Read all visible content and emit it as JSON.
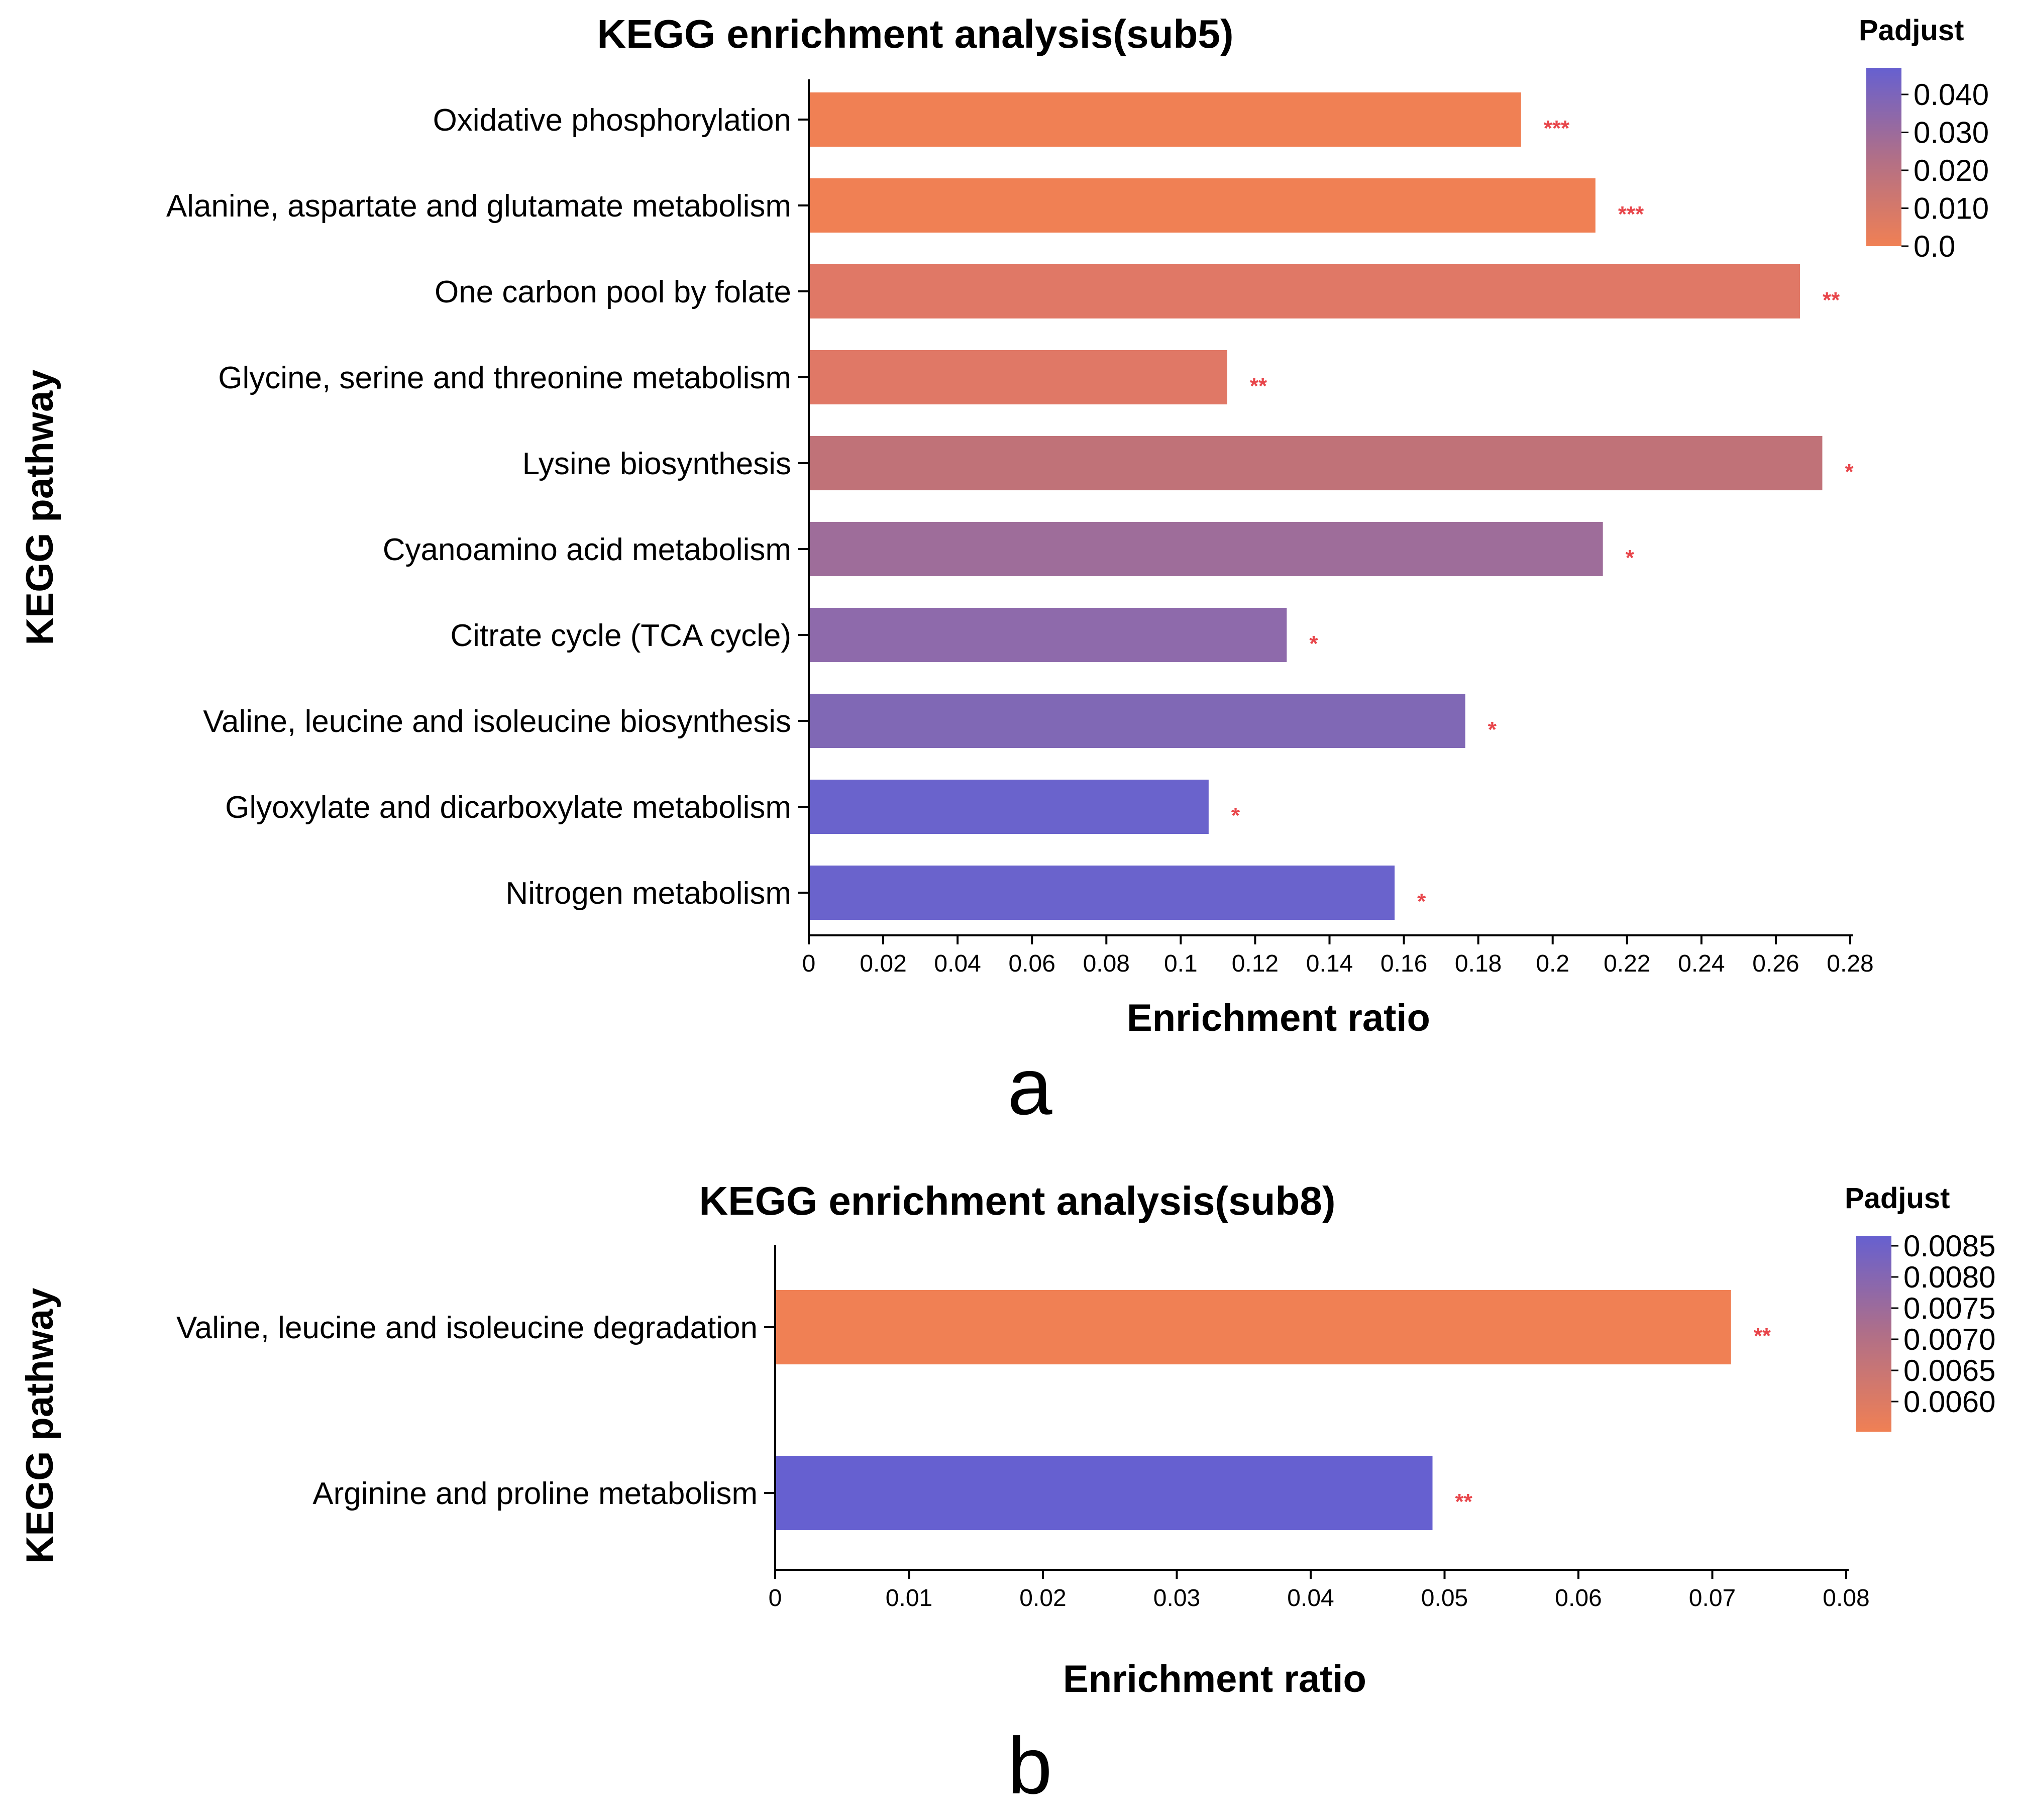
{
  "chart_data": [
    {
      "type": "bar",
      "orientation": "horizontal",
      "panel_label": "a",
      "title": "KEGG enrichment analysis(sub5)",
      "xlabel": "Enrichment ratio",
      "ylabel": "KEGG pathway",
      "xlim": [
        0,
        0.28
      ],
      "xticks": [
        "0",
        "0.02",
        "0.04",
        "0.06",
        "0.08",
        "0.1",
        "0.12",
        "0.14",
        "0.16",
        "0.18",
        "0.2",
        "0.22",
        "0.24",
        "0.26",
        "0.28"
      ],
      "categories": [
        "Oxidative phosphorylation",
        "Alanine, aspartate and glutamate metabolism",
        "One carbon pool by folate",
        "Glycine, serine and threonine metabolism",
        "Lysine biosynthesis",
        "Cyanoamino acid metabolism",
        "Citrate cycle (TCA cycle)",
        "Valine, leucine and isoleucine biosynthesis",
        "Glyoxylate and dicarboxylate metabolism",
        "Nitrogen metabolism"
      ],
      "values": [
        0.1915,
        0.2115,
        0.2665,
        0.1125,
        0.2725,
        0.2135,
        0.1285,
        0.1765,
        0.1075,
        0.1575
      ],
      "significance": [
        "***",
        "***",
        "**",
        "**",
        "*",
        "*",
        "*",
        "*",
        "*",
        "*"
      ],
      "colors": [
        "#f08054",
        "#f08054",
        "#e07866",
        "#e07866",
        "#c07278",
        "#9e6d9a",
        "#8e6aab",
        "#8068b5",
        "#6a63cc",
        "#6a63cc"
      ],
      "legend": {
        "title": "Padjust",
        "ticks": [
          "0.040",
          "0.030",
          "0.020",
          "0.010",
          "0.0"
        ],
        "color_low": "#f08054",
        "color_high": "#6660d0"
      }
    },
    {
      "type": "bar",
      "orientation": "horizontal",
      "panel_label": "b",
      "title": "KEGG enrichment analysis(sub8)",
      "xlabel": "Enrichment ratio",
      "ylabel": "KEGG pathway",
      "xlim": [
        0,
        0.08
      ],
      "xticks": [
        "0",
        "0.01",
        "0.02",
        "0.03",
        "0.04",
        "0.05",
        "0.06",
        "0.07",
        "0.08"
      ],
      "categories": [
        "Valine, leucine and isoleucine degradation",
        "Arginine and proline metabolism"
      ],
      "values": [
        0.0714,
        0.0491
      ],
      "significance": [
        "**",
        "**"
      ],
      "colors": [
        "#f08054",
        "#6660d0"
      ],
      "legend": {
        "title": "Padjust",
        "ticks": [
          "0.0085",
          "0.0080",
          "0.0075",
          "0.0070",
          "0.0065",
          "0.0060"
        ],
        "color_low": "#f08054",
        "color_high": "#6660d0"
      }
    }
  ]
}
